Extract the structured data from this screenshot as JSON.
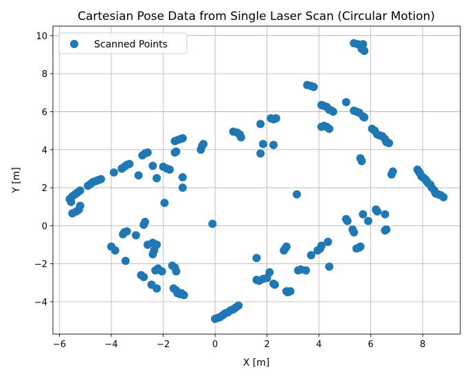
{
  "chart_data": {
    "type": "scatter",
    "title": "Cartesian Pose Data from Single Laser Scan (Circular Motion)",
    "xlabel": "X [m]",
    "ylabel": "Y [m]",
    "xlim": [
      -6.25,
      9.45
    ],
    "ylim": [
      -5.7,
      10.5
    ],
    "xticks": [
      -6,
      -4,
      -2,
      0,
      2,
      4,
      6,
      8
    ],
    "yticks": [
      -4,
      -2,
      0,
      2,
      4,
      6,
      8,
      10
    ],
    "grid": true,
    "legend": {
      "position": "top-left",
      "entries": [
        "Scanned Points"
      ]
    },
    "series": [
      {
        "name": "Scanned Points",
        "color": "#1f77b4",
        "points": [
          [
            -5.6,
            1.4
          ],
          [
            -5.5,
            1.55
          ],
          [
            -5.4,
            1.65
          ],
          [
            -5.3,
            1.75
          ],
          [
            -5.2,
            1.85
          ],
          [
            -5.55,
            1.25
          ],
          [
            -5.2,
            1.05
          ],
          [
            -5.25,
            0.85
          ],
          [
            -5.35,
            0.75
          ],
          [
            -5.5,
            0.65
          ],
          [
            -4.9,
            2.1
          ],
          [
            -4.8,
            2.2
          ],
          [
            -4.7,
            2.3
          ],
          [
            -4.6,
            2.35
          ],
          [
            -4.5,
            2.4
          ],
          [
            -4.4,
            2.45
          ],
          [
            -3.9,
            2.8
          ],
          [
            -3.6,
            3.0
          ],
          [
            -3.5,
            3.1
          ],
          [
            -3.4,
            3.2
          ],
          [
            -3.3,
            3.25
          ],
          [
            -2.8,
            3.7
          ],
          [
            -2.7,
            3.8
          ],
          [
            -2.6,
            3.85
          ],
          [
            -2.4,
            3.15
          ],
          [
            -2.95,
            2.65
          ],
          [
            -2.25,
            2.5
          ],
          [
            -2.0,
            3.1
          ],
          [
            -1.85,
            3.0
          ],
          [
            -1.75,
            2.95
          ],
          [
            -1.55,
            3.85
          ],
          [
            -1.5,
            3.9
          ],
          [
            -1.55,
            4.45
          ],
          [
            -1.45,
            4.5
          ],
          [
            -1.35,
            4.55
          ],
          [
            -1.25,
            4.6
          ],
          [
            -1.25,
            2.55
          ],
          [
            -1.25,
            2.0
          ],
          [
            -1.95,
            1.2
          ],
          [
            -0.55,
            4.0
          ],
          [
            -0.5,
            4.2
          ],
          [
            -0.45,
            4.3
          ],
          [
            -0.1,
            0.1
          ],
          [
            -2.7,
            0.2
          ],
          [
            -2.75,
            0.05
          ],
          [
            -3.05,
            -0.5
          ],
          [
            -3.4,
            -0.3
          ],
          [
            -3.5,
            -0.35
          ],
          [
            -3.55,
            -0.45
          ],
          [
            -4.0,
            -1.1
          ],
          [
            -3.85,
            -1.3
          ],
          [
            -3.45,
            -1.85
          ],
          [
            -2.6,
            -1.0
          ],
          [
            -2.4,
            -0.9
          ],
          [
            -2.3,
            -1.05
          ],
          [
            -2.35,
            -1.3
          ],
          [
            -2.4,
            -1.5
          ],
          [
            -2.25,
            -1.0
          ],
          [
            -2.3,
            -2.35
          ],
          [
            -2.2,
            -2.25
          ],
          [
            -2.05,
            -2.4
          ],
          [
            -2.85,
            -2.6
          ],
          [
            -2.75,
            -2.7
          ],
          [
            -2.45,
            -3.1
          ],
          [
            -2.25,
            -3.3
          ],
          [
            -1.65,
            -2.1
          ],
          [
            -1.55,
            -2.2
          ],
          [
            -1.5,
            -2.4
          ],
          [
            -1.6,
            -3.3
          ],
          [
            -1.5,
            -3.4
          ],
          [
            -1.45,
            -3.55
          ],
          [
            -1.35,
            -3.6
          ],
          [
            -1.3,
            -3.55
          ],
          [
            -1.2,
            -3.65
          ],
          [
            0.0,
            -4.9
          ],
          [
            0.1,
            -4.85
          ],
          [
            0.2,
            -4.8
          ],
          [
            0.3,
            -4.7
          ],
          [
            0.4,
            -4.6
          ],
          [
            0.5,
            -4.55
          ],
          [
            0.6,
            -4.45
          ],
          [
            0.7,
            -4.4
          ],
          [
            0.8,
            -4.3
          ],
          [
            0.9,
            -4.2
          ],
          [
            0.7,
            4.95
          ],
          [
            0.85,
            4.9
          ],
          [
            0.95,
            4.8
          ],
          [
            1.0,
            4.65
          ],
          [
            1.75,
            5.35
          ],
          [
            1.85,
            4.3
          ],
          [
            1.75,
            3.8
          ],
          [
            2.25,
            4.25
          ],
          [
            2.15,
            5.65
          ],
          [
            2.25,
            5.6
          ],
          [
            2.35,
            5.65
          ],
          [
            3.15,
            1.65
          ],
          [
            1.6,
            -1.7
          ],
          [
            1.6,
            -2.85
          ],
          [
            1.7,
            -2.9
          ],
          [
            1.85,
            -2.8
          ],
          [
            2.0,
            -2.75
          ],
          [
            2.1,
            -2.45
          ],
          [
            2.25,
            -3.05
          ],
          [
            2.3,
            -3.1
          ],
          [
            2.65,
            -1.3
          ],
          [
            2.7,
            -1.2
          ],
          [
            2.75,
            -1.1
          ],
          [
            2.75,
            -3.45
          ],
          [
            2.8,
            -3.5
          ],
          [
            2.9,
            -3.45
          ],
          [
            3.2,
            -2.35
          ],
          [
            3.3,
            -2.3
          ],
          [
            3.5,
            -2.35
          ],
          [
            3.7,
            -1.55
          ],
          [
            3.95,
            -1.3
          ],
          [
            4.05,
            -1.2
          ],
          [
            4.1,
            -1.05
          ],
          [
            4.35,
            -0.85
          ],
          [
            4.4,
            -2.15
          ],
          [
            3.55,
            7.4
          ],
          [
            3.7,
            7.35
          ],
          [
            3.8,
            7.3
          ],
          [
            4.1,
            6.35
          ],
          [
            4.2,
            6.3
          ],
          [
            4.3,
            6.25
          ],
          [
            4.4,
            6.1
          ],
          [
            4.5,
            6.05
          ],
          [
            4.55,
            6.0
          ],
          [
            4.1,
            5.2
          ],
          [
            4.2,
            5.25
          ],
          [
            4.3,
            5.2
          ],
          [
            4.4,
            5.1
          ],
          [
            5.05,
            6.5
          ],
          [
            5.35,
            6.05
          ],
          [
            5.45,
            6.0
          ],
          [
            5.55,
            5.95
          ],
          [
            5.7,
            5.75
          ],
          [
            5.75,
            5.7
          ],
          [
            5.35,
            9.6
          ],
          [
            5.5,
            9.55
          ],
          [
            5.6,
            9.5
          ],
          [
            5.7,
            9.55
          ],
          [
            5.65,
            9.3
          ],
          [
            5.75,
            9.2
          ],
          [
            5.6,
            3.55
          ],
          [
            5.65,
            3.4
          ],
          [
            5.7,
            0.6
          ],
          [
            5.9,
            0.25
          ],
          [
            5.05,
            0.35
          ],
          [
            5.1,
            0.25
          ],
          [
            5.3,
            -0.2
          ],
          [
            5.35,
            -0.35
          ],
          [
            5.45,
            -1.2
          ],
          [
            5.55,
            -1.15
          ],
          [
            5.6,
            -1.1
          ],
          [
            6.05,
            5.1
          ],
          [
            6.15,
            5.0
          ],
          [
            6.25,
            4.8
          ],
          [
            6.35,
            4.75
          ],
          [
            6.45,
            4.7
          ],
          [
            6.55,
            4.55
          ],
          [
            6.6,
            4.4
          ],
          [
            6.7,
            4.35
          ],
          [
            6.2,
            0.85
          ],
          [
            6.25,
            0.75
          ],
          [
            6.55,
            0.6
          ],
          [
            6.55,
            -0.25
          ],
          [
            6.6,
            -0.2
          ],
          [
            6.8,
            2.7
          ],
          [
            6.85,
            2.85
          ],
          [
            7.8,
            2.95
          ],
          [
            7.85,
            2.85
          ],
          [
            7.9,
            2.75
          ],
          [
            7.95,
            2.6
          ],
          [
            8.0,
            2.55
          ],
          [
            8.05,
            2.5
          ],
          [
            8.1,
            2.45
          ],
          [
            8.15,
            2.35
          ],
          [
            8.2,
            2.25
          ],
          [
            8.3,
            2.15
          ],
          [
            8.35,
            2.0
          ],
          [
            8.45,
            1.85
          ],
          [
            8.5,
            1.7
          ],
          [
            8.6,
            1.65
          ],
          [
            8.7,
            1.6
          ],
          [
            8.8,
            1.5
          ]
        ]
      }
    ]
  }
}
